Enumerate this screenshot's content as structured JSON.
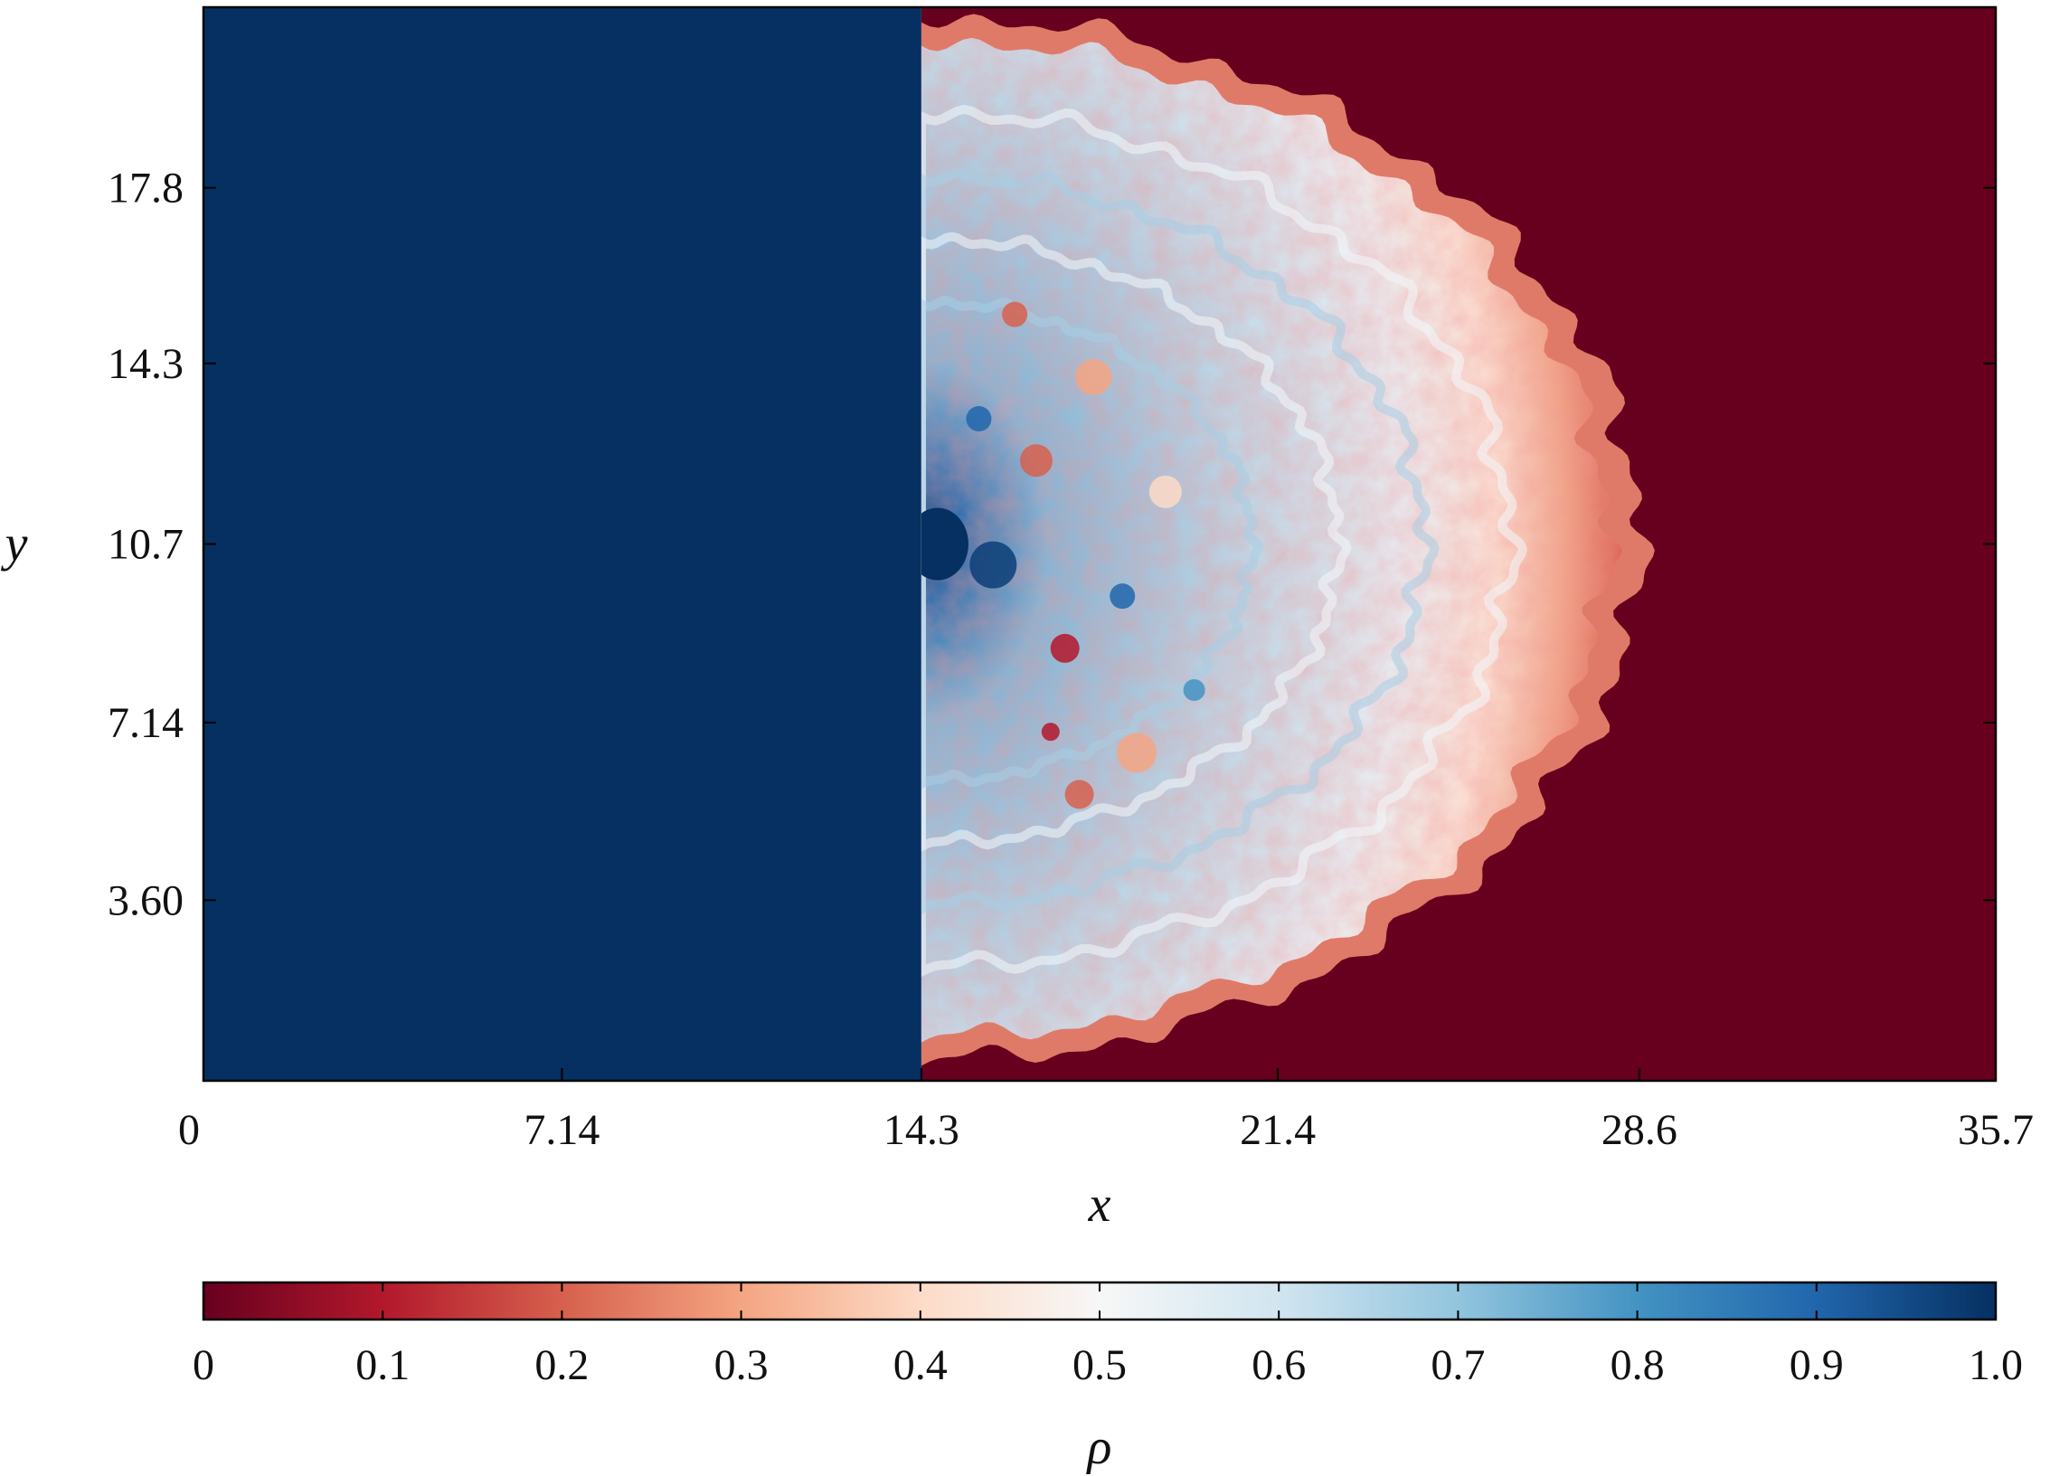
{
  "chart_data": {
    "type": "heatmap",
    "xlabel": "x",
    "ylabel": "y",
    "xlim": [
      0,
      35.7
    ],
    "ylim": [
      0,
      21.4
    ],
    "x_ticks": [
      {
        "value": 0,
        "label": "0"
      },
      {
        "value": 7.14,
        "label": "7.14"
      },
      {
        "value": 14.3,
        "label": "14.3"
      },
      {
        "value": 21.4,
        "label": "21.4"
      },
      {
        "value": 28.6,
        "label": "28.6"
      },
      {
        "value": 35.7,
        "label": "35.7"
      }
    ],
    "y_ticks": [
      {
        "value": 3.6,
        "label": "3.60"
      },
      {
        "value": 7.14,
        "label": "7.14"
      },
      {
        "value": 10.7,
        "label": "10.7"
      },
      {
        "value": 14.3,
        "label": "14.3"
      },
      {
        "value": 17.8,
        "label": "17.8"
      }
    ],
    "colorbar": {
      "label": "ρ",
      "range": [
        0,
        1.0
      ],
      "colormap": "RdBu",
      "ticks": [
        {
          "value": 0,
          "label": "0"
        },
        {
          "value": 0.1,
          "label": "0.1"
        },
        {
          "value": 0.2,
          "label": "0.2"
        },
        {
          "value": 0.3,
          "label": "0.3"
        },
        {
          "value": 0.4,
          "label": "0.4"
        },
        {
          "value": 0.5,
          "label": "0.5"
        },
        {
          "value": 0.6,
          "label": "0.6"
        },
        {
          "value": 0.7,
          "label": "0.7"
        },
        {
          "value": 0.8,
          "label": "0.8"
        },
        {
          "value": 0.9,
          "label": "0.9"
        },
        {
          "value": 1.0,
          "label": "1.0"
        }
      ]
    },
    "field": {
      "left_region": {
        "x_range": [
          0,
          14.3
        ],
        "value": 1.0
      },
      "right_region": {
        "x_range": [
          14.3,
          35.7
        ],
        "value": 0.0
      },
      "mixing_zone": {
        "center": [
          14.3,
          10.7
        ],
        "x_extent": [
          14.3,
          28.6
        ],
        "y_extent": [
          0.4,
          21.2
        ],
        "core_value": 0.6,
        "edge_value": 0.3
      }
    },
    "colors": {
      "low": "#67001f",
      "mid": "#f7f7f7",
      "high": "#053061"
    }
  }
}
